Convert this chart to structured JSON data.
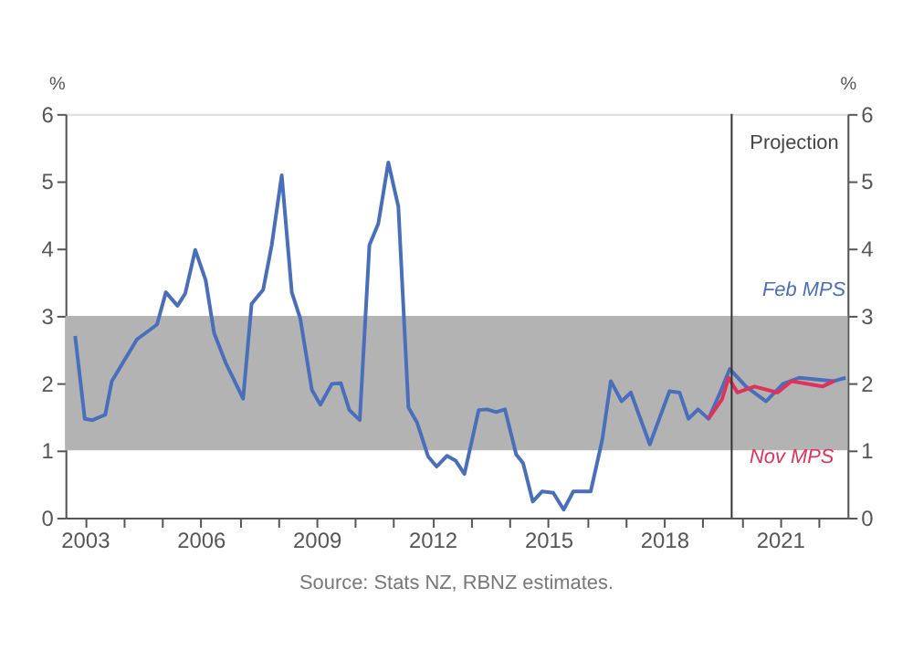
{
  "chart_data": {
    "type": "line",
    "ylabel": "%",
    "y2label": "%",
    "xlim": [
      2002.5,
      2022.75
    ],
    "xticks": [
      {
        "value": 2003,
        "label": "2003"
      },
      {
        "value": 2004,
        "label": null
      },
      {
        "value": 2005,
        "label": null
      },
      {
        "value": 2006,
        "label": "2006"
      },
      {
        "value": 2007,
        "label": null
      },
      {
        "value": 2008,
        "label": null
      },
      {
        "value": 2009,
        "label": "2009"
      },
      {
        "value": 2010,
        "label": null
      },
      {
        "value": 2011,
        "label": null
      },
      {
        "value": 2012,
        "label": "2012"
      },
      {
        "value": 2013,
        "label": null
      },
      {
        "value": 2014,
        "label": null
      },
      {
        "value": 2015,
        "label": "2015"
      },
      {
        "value": 2016,
        "label": null
      },
      {
        "value": 2017,
        "label": null
      },
      {
        "value": 2018,
        "label": "2018"
      },
      {
        "value": 2019,
        "label": null
      },
      {
        "value": 2020,
        "label": null
      },
      {
        "value": 2021,
        "label": "2021"
      },
      {
        "value": 2022,
        "label": null
      }
    ],
    "ylim": [
      0,
      6
    ],
    "yticks": [
      0,
      1,
      2,
      3,
      4,
      5,
      6
    ],
    "y2lim": [
      0,
      6
    ],
    "y2ticks": [
      0,
      1,
      2,
      3,
      4,
      5,
      6
    ],
    "grid": false,
    "marker": "none",
    "line_style": "solid",
    "bands": [
      {
        "axis": "y",
        "from": 1,
        "to": 3,
        "color": "#b3b3b3"
      }
    ],
    "ref_lines": [
      {
        "axis": "x",
        "value": 2019.75,
        "label": "Projection",
        "color": "#333333"
      }
    ],
    "annotations": [
      "Source: Stats NZ, RBNZ estimates."
    ],
    "series": [
      {
        "name": "Feb MPS",
        "color": "#4a6fba",
        "x": [
          2002.75,
          2003.0,
          2003.2,
          2003.53,
          2003.7,
          2004.35,
          2004.87,
          2005.1,
          2005.4,
          2005.6,
          2005.86,
          2006.13,
          2006.35,
          2006.65,
          2007.1,
          2007.32,
          2007.62,
          2007.84,
          2008.1,
          2008.36,
          2008.58,
          2008.88,
          2009.1,
          2009.4,
          2009.63,
          2009.85,
          2010.12,
          2010.37,
          2010.6,
          2010.86,
          2011.12,
          2011.38,
          2011.6,
          2011.89,
          2012.11,
          2012.38,
          2012.6,
          2012.83,
          2013.2,
          2013.42,
          2013.65,
          2013.88,
          2014.17,
          2014.35,
          2014.6,
          2014.84,
          2015.13,
          2015.4,
          2015.65,
          2016.1,
          2016.4,
          2016.62,
          2016.9,
          2017.14,
          2017.63,
          2018.14,
          2018.4,
          2018.63,
          2018.88,
          2019.15,
          2019.45,
          2019.7,
          2020.12,
          2020.64,
          2021.08,
          2021.5,
          2022.4,
          2022.7
        ],
        "values": [
          2.7,
          1.47,
          1.45,
          1.53,
          2.03,
          2.65,
          2.87,
          3.35,
          3.15,
          3.33,
          3.98,
          3.53,
          2.74,
          2.3,
          1.77,
          3.18,
          3.39,
          4.05,
          5.09,
          3.35,
          2.96,
          1.9,
          1.68,
          1.99,
          2.0,
          1.6,
          1.45,
          4.05,
          4.37,
          5.28,
          4.62,
          1.64,
          1.42,
          0.91,
          0.76,
          0.92,
          0.85,
          0.65,
          1.6,
          1.61,
          1.57,
          1.61,
          0.94,
          0.81,
          0.24,
          0.39,
          0.37,
          0.12,
          0.39,
          0.39,
          1.16,
          2.03,
          1.73,
          1.86,
          1.09,
          1.88,
          1.86,
          1.47,
          1.61,
          1.47,
          1.86,
          2.21,
          1.95,
          1.73,
          1.99,
          2.08,
          2.03,
          2.08
        ]
      },
      {
        "name": "Nov MPS",
        "color": "#e0325a",
        "x": [
          2019.15,
          2019.5,
          2019.67,
          2019.9,
          2020.34,
          2020.94,
          2021.3,
          2022.1,
          2022.4
        ],
        "values": [
          1.47,
          1.76,
          2.08,
          1.86,
          1.95,
          1.86,
          2.03,
          1.95,
          2.03
        ]
      }
    ]
  }
}
